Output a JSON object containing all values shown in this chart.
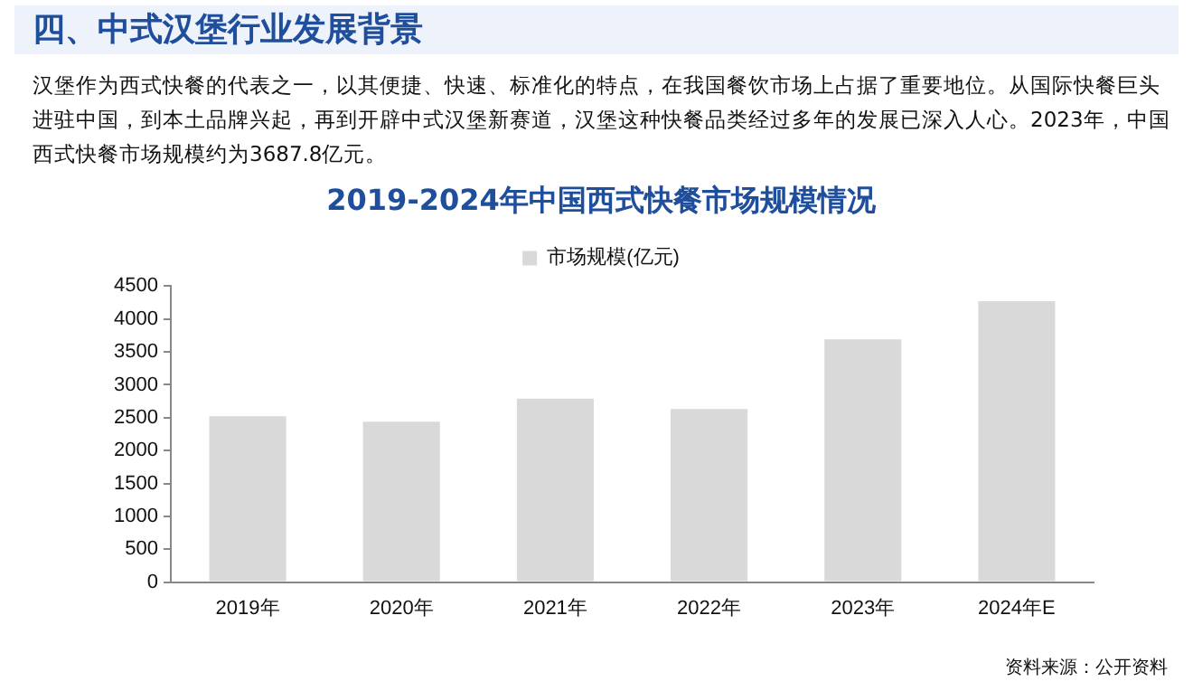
{
  "chart_data": {
    "type": "bar",
    "title": "2019-2024年中国西式快餐市场规模情况",
    "categories": [
      "2019年",
      "2020年",
      "2021年",
      "2022年",
      "2023年",
      "2024年E"
    ],
    "series": [
      {
        "name": "市场规模(亿元)",
        "color": "#d9d9d9",
        "values": [
          2520,
          2440,
          2790,
          2630,
          3690,
          4270
        ]
      }
    ],
    "ylim": [
      0,
      4500
    ],
    "yticks": [
      0,
      500,
      1000,
      1500,
      2000,
      2500,
      3000,
      3500,
      4000,
      4500
    ],
    "grid": false,
    "legend": "top",
    "annotations": [
      "四、中式汉堡行业发展背景",
      "汉堡作为西式快餐的代表之一，以其便捷、快速、标准化的特点，在我国餐饮市场上占据了重要地位。从国际快餐巨头进驻中国，到本土品牌兴起，再到开辟中式汉堡新赛道，汉堡这种快餐品类经过多年的发展已深入人心。2023年，中国西式快餐市场规模约为3687.8亿元。",
      "资料来源：公开资料"
    ]
  }
}
